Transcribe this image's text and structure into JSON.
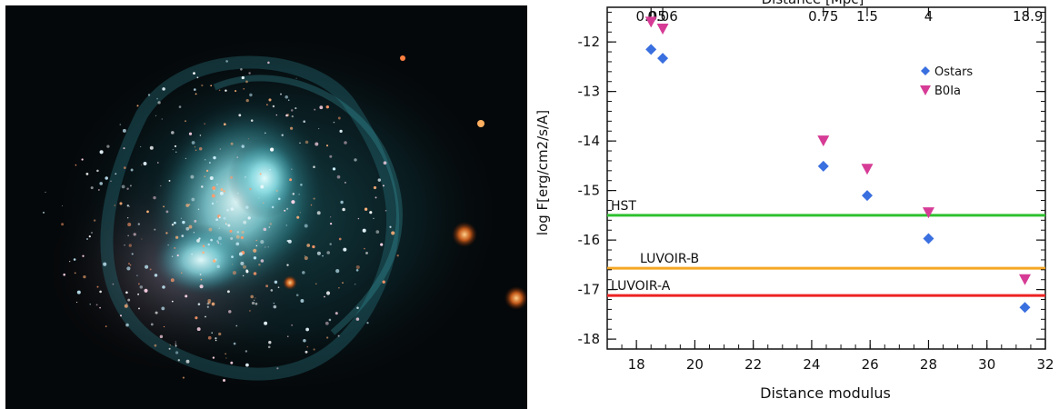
{
  "image": {
    "subject": "dwarf galaxy photograph"
  },
  "chart_data": {
    "type": "scatter",
    "xlabel": "Distance modulus",
    "ylabel": "log F[erg/cm2/s/A]",
    "top_axis_label": "Distance [Mpc]",
    "top_ticks": [
      {
        "x": 18.5,
        "label": "0.05"
      },
      {
        "x": 18.9,
        "label": "0.06"
      },
      {
        "x": 24.4,
        "label": "0.75"
      },
      {
        "x": 25.9,
        "label": "1.5"
      },
      {
        "x": 28.0,
        "label": "4"
      },
      {
        "x": 31.4,
        "label": "18.9"
      }
    ],
    "xlim": [
      17,
      32
    ],
    "ylim": [
      -18.2,
      -11.3
    ],
    "xticks": [
      18,
      20,
      22,
      24,
      26,
      28,
      30,
      32
    ],
    "yticks": [
      -18,
      -17,
      -16,
      -15,
      -14,
      -13,
      -12
    ],
    "series": [
      {
        "name": "Ostars",
        "marker": "diamond",
        "color": "#3a6fe0",
        "x": [
          18.5,
          18.9,
          24.4,
          25.9,
          28.0,
          31.3
        ],
        "y": [
          -12.15,
          -12.33,
          -14.51,
          -15.1,
          -15.97,
          -17.36
        ]
      },
      {
        "name": "B0Ia",
        "marker": "triangle-down",
        "color": "#d63c96",
        "x": [
          18.5,
          18.9,
          24.4,
          25.9,
          28.0,
          31.3
        ],
        "y": [
          -11.6,
          -11.74,
          -14.0,
          -14.57,
          -15.45,
          -16.8
        ]
      }
    ],
    "limits": [
      {
        "label": "HST",
        "y": -15.5,
        "color": "#2ec02e"
      },
      {
        "label": "LUVOIR-B",
        "y": -16.57,
        "color": "#f5a623"
      },
      {
        "label": "LUVOIR-A",
        "y": -17.12,
        "color": "#ee2222"
      }
    ],
    "legend_position": "top-right",
    "grid": false
  }
}
